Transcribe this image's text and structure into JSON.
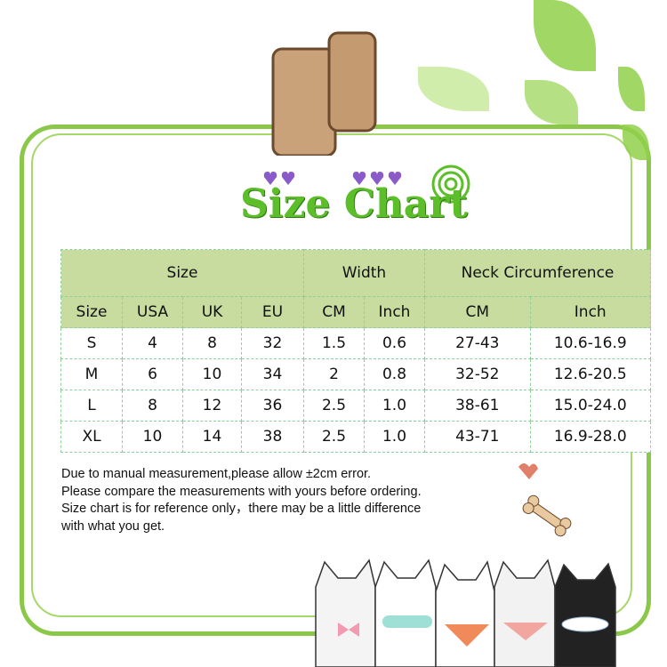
{
  "title": "Size Chart",
  "table": {
    "group_headers": [
      "Size",
      "Width",
      "Neck Circumference"
    ],
    "column_headers": [
      "Size",
      "USA",
      "UK",
      "EU",
      "CM",
      "Inch",
      "CM",
      "Inch"
    ],
    "rows": [
      [
        "S",
        "4",
        "8",
        "32",
        "1.5",
        "0.6",
        "27-43",
        "10.6-16.9"
      ],
      [
        "M",
        "6",
        "10",
        "34",
        "2",
        "0.8",
        "32-52",
        "12.6-20.5"
      ],
      [
        "L",
        "8",
        "12",
        "36",
        "2.5",
        "1.0",
        "38-61",
        "15.0-24.0"
      ],
      [
        "XL",
        "10",
        "14",
        "38",
        "2.5",
        "1.0",
        "43-71",
        "16.9-28.0"
      ]
    ]
  },
  "notes": [
    "Due to manual measurement,please allow ±2cm error.",
    "Please compare the measurements with yours before ordering.",
    "Size chart is for reference only，there may be a little difference",
    "with what you get."
  ],
  "colors": {
    "frame": "#8bc84a",
    "header_bg": "#c7dc9e",
    "title": "#5cbf2a"
  }
}
